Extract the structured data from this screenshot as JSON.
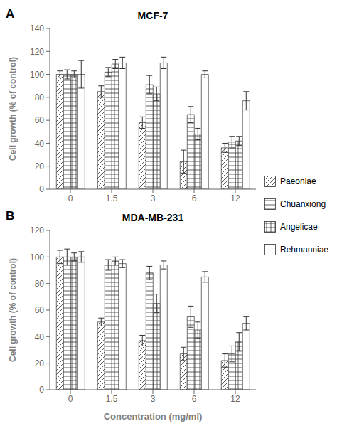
{
  "chart_data": [
    {
      "type": "bar",
      "title": "MCF-7",
      "annotations": [
        "A"
      ],
      "categories": [
        "0",
        "1.5",
        "3",
        "6",
        "12"
      ],
      "series": [
        {
          "name": "Paeoniae",
          "color": "white",
          "values": [
            100,
            85,
            58,
            24,
            36
          ],
          "errors": [
            3,
            5,
            5,
            10,
            4
          ]
        },
        {
          "name": "Chuanxiong",
          "color": "white",
          "values": [
            100,
            102,
            91,
            65,
            41
          ],
          "errors": [
            4,
            4,
            8,
            7,
            5
          ]
        },
        {
          "name": "Angelicae",
          "color": "white",
          "values": [
            100,
            109,
            83,
            48,
            42
          ],
          "errors": [
            3,
            4,
            6,
            5,
            4
          ]
        },
        {
          "name": "Rehmanniae",
          "color": "white",
          "values": [
            100,
            110,
            110,
            100,
            77
          ],
          "errors": [
            12,
            5,
            5,
            3,
            8
          ]
        }
      ],
      "ylabel": "Cell growth (% of control)",
      "ylim": [
        0,
        140
      ],
      "yticks": [
        0,
        20,
        40,
        60,
        80,
        100,
        120,
        140
      ],
      "grid": false,
      "legend": "right"
    },
    {
      "type": "bar",
      "title": "MDA-MB-231",
      "annotations": [
        "B"
      ],
      "categories": [
        "0",
        "1.5",
        "3",
        "6",
        "12"
      ],
      "series": [
        {
          "name": "Paeoniae",
          "color": "white",
          "values": [
            100,
            51,
            37,
            27,
            22
          ],
          "errors": [
            5,
            3,
            4,
            5,
            5
          ]
        },
        {
          "name": "Chuanxiong",
          "color": "white",
          "values": [
            100,
            94,
            88,
            55,
            27
          ],
          "errors": [
            6,
            4,
            5,
            8,
            6
          ]
        },
        {
          "name": "Angelicae",
          "color": "white",
          "values": [
            100,
            97,
            65,
            45,
            36
          ],
          "errors": [
            3,
            3,
            7,
            6,
            7
          ]
        },
        {
          "name": "Rehmanniae",
          "color": "white",
          "values": [
            100,
            95,
            94,
            85,
            50
          ],
          "errors": [
            4,
            3,
            3,
            4,
            5
          ]
        }
      ],
      "ylabel": "Cell growth (% of control)",
      "xlabel": "Concentration (mg/ml)",
      "ylim": [
        0,
        120
      ],
      "yticks": [
        0,
        20,
        40,
        60,
        80,
        100,
        120
      ],
      "grid": false
    }
  ]
}
